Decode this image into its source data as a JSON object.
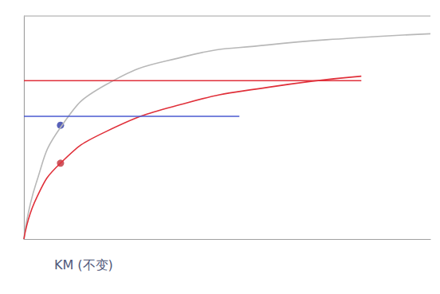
{
  "chart_data": {
    "type": "line",
    "xlim": [
      0,
      10
    ],
    "ylim": [
      0,
      10
    ],
    "tick_labels": false,
    "grid": false,
    "series": [
      {
        "type": "line",
        "color": "#b8b8b8",
        "line_style": "solid",
        "x": [
          0,
          10
        ],
        "values": [
          10,
          10
        ]
      },
      {
        "type": "line",
        "color": "#b8b8b8",
        "line_style": "solid",
        "x": [
          0,
          0.3,
          0.9,
          2,
          4,
          6,
          8,
          10
        ],
        "values": [
          0,
          2.5,
          5,
          6.9,
          8.2,
          8.7,
          9.0,
          9.2
        ]
      },
      {
        "type": "line",
        "color": "#e0303a",
        "line_style": "solid",
        "x": [
          0,
          8.3
        ],
        "values": [
          7.1,
          7.1
        ]
      },
      {
        "type": "line",
        "color": "#e0303a",
        "line_style": "solid",
        "x": [
          0,
          0.3,
          0.9,
          2,
          4,
          6,
          8.3
        ],
        "values": [
          0,
          1.8,
          3.4,
          4.8,
          6.1,
          6.8,
          7.3
        ]
      },
      {
        "type": "line",
        "color": "#4a5ad0",
        "line_style": "solid",
        "x": [
          0,
          5.3
        ],
        "values": [
          5.5,
          5.5
        ]
      },
      {
        "type": "scatter",
        "color": "#2e3aa8",
        "marker": "circle",
        "x": [
          0.9
        ],
        "values": [
          5.1
        ]
      },
      {
        "type": "scatter",
        "color": "#c0303a",
        "marker": "circle",
        "x": [
          0.9
        ],
        "values": [
          3.4
        ]
      }
    ],
    "annotations": [
      {
        "text": "KM (不变)",
        "x": 0.9
      }
    ]
  }
}
